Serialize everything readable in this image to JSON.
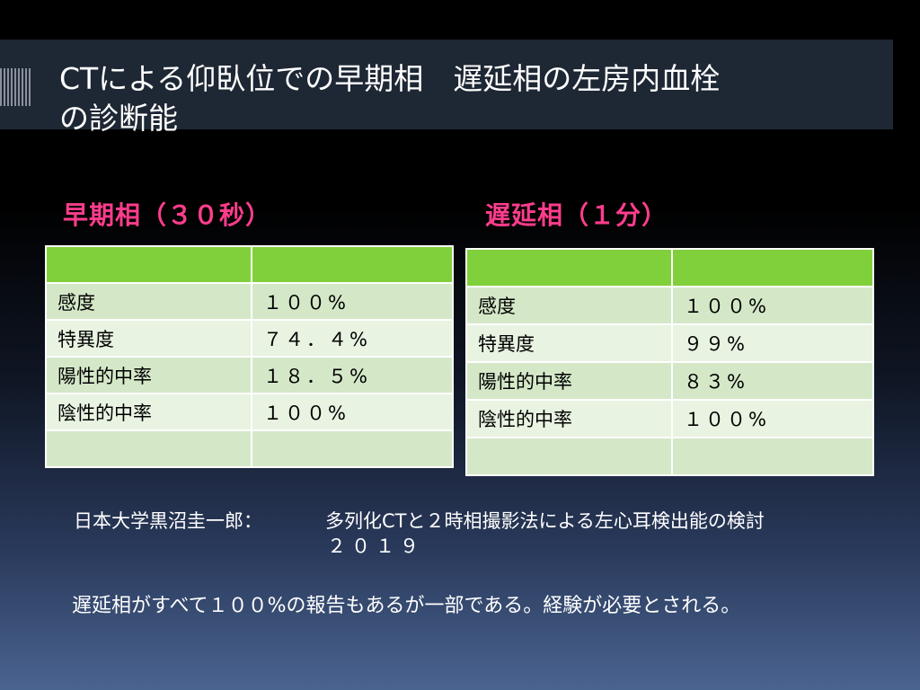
{
  "slide": {
    "title_line1": "CTによる仰臥位での早期相　遅延相の左房内血栓",
    "title_line2": "の診断能"
  },
  "early": {
    "heading": "早期相（３０秒）",
    "rows": [
      {
        "label": "感度",
        "value": "１００%"
      },
      {
        "label": "特異度",
        "value": "７４．４%"
      },
      {
        "label": "陽性的中率",
        "value": "１８．５%"
      },
      {
        "label": "陰性的中率",
        "value": "１００%"
      }
    ]
  },
  "late": {
    "heading": "遅延相（１分）",
    "rows": [
      {
        "label": "感度",
        "value": "１００%"
      },
      {
        "label": "特異度",
        "value": "９９%"
      },
      {
        "label": "陽性的中率",
        "value": "８３%"
      },
      {
        "label": "陰性的中率",
        "value": "１００%"
      }
    ]
  },
  "citation": {
    "author": "日本大学黒沼圭一郎：",
    "title": "多列化CTと２時相撮影法による左心耳検出能の検討",
    "year": "２０１９"
  },
  "note": "遅延相がすべて１００%の報告もあるが一部である。経験が必要とされる。",
  "colors": {
    "heading": "#ff3d8c",
    "table_header": "#80d03c",
    "row_dark": "#d4e8c8",
    "row_light": "#e8f3e1"
  }
}
